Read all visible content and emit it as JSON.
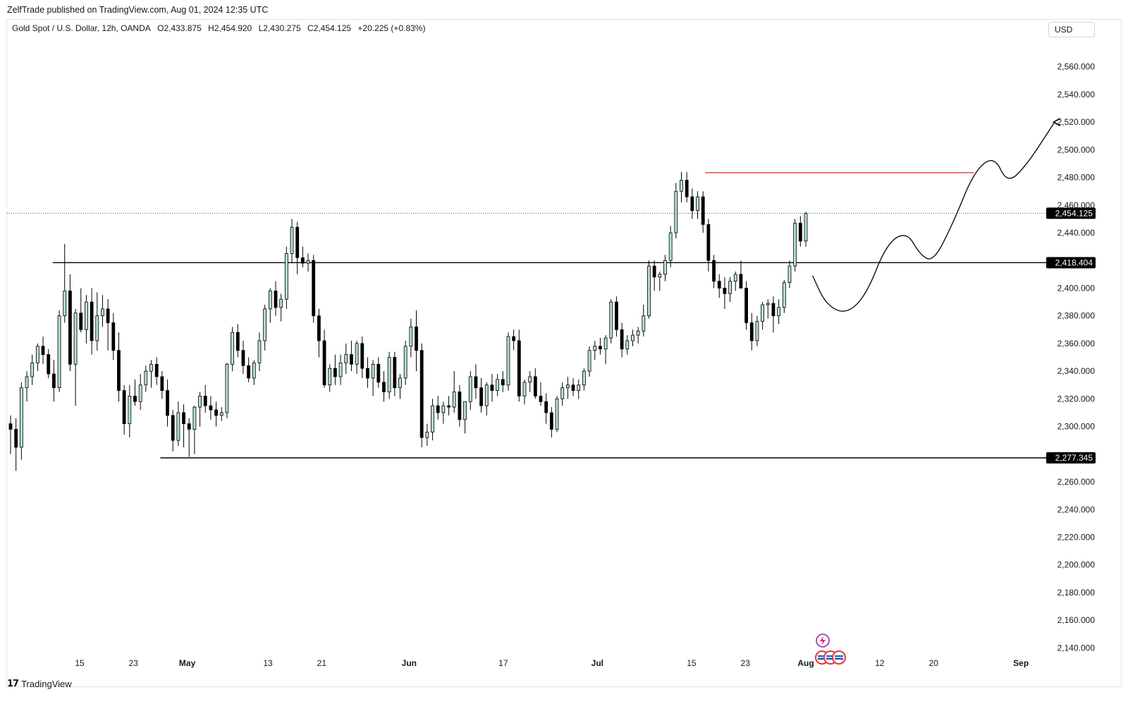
{
  "header": {
    "publisher_line": "ZelfTrade published on TradingView.com, Aug 01, 2024 12:35 UTC"
  },
  "legend": {
    "symbol": "Gold Spot / U.S. Dollar, 12h, OANDA",
    "open": "O2,433.875",
    "high": "H2,454.920",
    "low": "L2,430.275",
    "close": "C2,454.125",
    "change": "+20.225 (+0.83%)"
  },
  "currency_button": "USD",
  "footer": {
    "brand": "TradingView"
  },
  "colors": {
    "up_body": "#b2dfdb",
    "down_body": "#000000",
    "wick": "#000000",
    "resistance_line": "#f23645",
    "level_line": "#000000",
    "label_bg": "#000000",
    "label_text": "#ffffff"
  },
  "icons": [
    "tradingview-logo-icon",
    "lightning-event-icon",
    "us-flag-event-icon"
  ],
  "chart_data": {
    "type": "candlestick",
    "interval": "12h",
    "ylim": [
      2130,
      2570
    ],
    "y_axis_position": "right",
    "y_ticks": [
      "2,560.000",
      "2,540.000",
      "2,520.000",
      "2,500.000",
      "2,480.000",
      "2,460.000",
      "2,440.000",
      "2,400.000",
      "2,380.000",
      "2,360.000",
      "2,340.000",
      "2,320.000",
      "2,300.000",
      "2,260.000",
      "2,240.000",
      "2,220.000",
      "2,200.000",
      "2,180.000",
      "2,160.000",
      "2,140.000"
    ],
    "x_ticks": [
      {
        "label": "15",
        "date": "2024-04-15"
      },
      {
        "label": "23",
        "date": "2024-04-23"
      },
      {
        "label": "May",
        "date": "2024-05-01"
      },
      {
        "label": "13",
        "date": "2024-05-13"
      },
      {
        "label": "21",
        "date": "2024-05-21"
      },
      {
        "label": "Jun",
        "date": "2024-06-03"
      },
      {
        "label": "17",
        "date": "2024-06-17"
      },
      {
        "label": "Jul",
        "date": "2024-07-01"
      },
      {
        "label": "15",
        "date": "2024-07-15"
      },
      {
        "label": "23",
        "date": "2024-07-23"
      },
      {
        "label": "Aug",
        "date": "2024-08-01"
      },
      {
        "label": "12",
        "date": "2024-08-12"
      },
      {
        "label": "20",
        "date": "2024-08-20"
      },
      {
        "label": "Sep",
        "date": "2024-09-02"
      }
    ],
    "price_labels": [
      {
        "label": "2,454.125",
        "value": 2454.125,
        "style": "dotted-current"
      },
      {
        "label": "2,418.404",
        "value": 2418.404,
        "style": "solid-level"
      },
      {
        "label": "2,277.345",
        "value": 2277.345,
        "style": "solid-level"
      }
    ],
    "horizontal_lines": [
      {
        "value": 2418.404,
        "from": "2024-04-11",
        "color": "#000000"
      },
      {
        "value": 2277.345,
        "from": "2024-04-27",
        "color": "#000000"
      },
      {
        "value": 2483.5,
        "from": "2024-07-17",
        "to": "2024-08-26",
        "color": "#f23645"
      }
    ],
    "projection_path": [
      {
        "date": "2024-08-02",
        "value": 2409
      },
      {
        "date": "2024-08-04",
        "value": 2388
      },
      {
        "date": "2024-08-07",
        "value": 2381
      },
      {
        "date": "2024-08-10",
        "value": 2395
      },
      {
        "date": "2024-08-13",
        "value": 2432
      },
      {
        "date": "2024-08-16",
        "value": 2441
      },
      {
        "date": "2024-08-18",
        "value": 2424
      },
      {
        "date": "2024-08-20",
        "value": 2419
      },
      {
        "date": "2024-08-23",
        "value": 2448
      },
      {
        "date": "2024-08-26",
        "value": 2484
      },
      {
        "date": "2024-08-29",
        "value": 2496
      },
      {
        "date": "2024-08-31",
        "value": 2475
      },
      {
        "date": "2024-09-03",
        "value": 2490
      },
      {
        "date": "2024-09-07",
        "value": 2520
      }
    ],
    "candles": [
      {
        "o": 2302,
        "h": 2308,
        "l": 2280,
        "c": 2298
      },
      {
        "o": 2298,
        "h": 2306,
        "l": 2268,
        "c": 2285
      },
      {
        "o": 2285,
        "h": 2332,
        "l": 2276,
        "c": 2328
      },
      {
        "o": 2328,
        "h": 2340,
        "l": 2318,
        "c": 2336
      },
      {
        "o": 2336,
        "h": 2352,
        "l": 2330,
        "c": 2346
      },
      {
        "o": 2346,
        "h": 2360,
        "l": 2340,
        "c": 2358
      },
      {
        "o": 2358,
        "h": 2365,
        "l": 2345,
        "c": 2352
      },
      {
        "o": 2352,
        "h": 2356,
        "l": 2335,
        "c": 2338
      },
      {
        "o": 2338,
        "h": 2348,
        "l": 2318,
        "c": 2328
      },
      {
        "o": 2328,
        "h": 2384,
        "l": 2325,
        "c": 2380
      },
      {
        "o": 2380,
        "h": 2432,
        "l": 2375,
        "c": 2398
      },
      {
        "o": 2398,
        "h": 2410,
        "l": 2340,
        "c": 2345
      },
      {
        "o": 2345,
        "h": 2385,
        "l": 2315,
        "c": 2382
      },
      {
        "o": 2382,
        "h": 2400,
        "l": 2368,
        "c": 2370
      },
      {
        "o": 2370,
        "h": 2395,
        "l": 2360,
        "c": 2390
      },
      {
        "o": 2390,
        "h": 2400,
        "l": 2352,
        "c": 2362
      },
      {
        "o": 2362,
        "h": 2397,
        "l": 2355,
        "c": 2380
      },
      {
        "o": 2380,
        "h": 2395,
        "l": 2372,
        "c": 2385
      },
      {
        "o": 2385,
        "h": 2392,
        "l": 2355,
        "c": 2375
      },
      {
        "o": 2375,
        "h": 2382,
        "l": 2348,
        "c": 2355
      },
      {
        "o": 2355,
        "h": 2368,
        "l": 2318,
        "c": 2326
      },
      {
        "o": 2326,
        "h": 2330,
        "l": 2294,
        "c": 2302
      },
      {
        "o": 2302,
        "h": 2330,
        "l": 2292,
        "c": 2322
      },
      {
        "o": 2322,
        "h": 2334,
        "l": 2315,
        "c": 2318
      },
      {
        "o": 2318,
        "h": 2338,
        "l": 2312,
        "c": 2330
      },
      {
        "o": 2330,
        "h": 2344,
        "l": 2325,
        "c": 2340
      },
      {
        "o": 2340,
        "h": 2348,
        "l": 2328,
        "c": 2345
      },
      {
        "o": 2345,
        "h": 2350,
        "l": 2330,
        "c": 2336
      },
      {
        "o": 2336,
        "h": 2340,
        "l": 2320,
        "c": 2326
      },
      {
        "o": 2326,
        "h": 2334,
        "l": 2300,
        "c": 2308
      },
      {
        "o": 2308,
        "h": 2312,
        "l": 2282,
        "c": 2290
      },
      {
        "o": 2290,
        "h": 2318,
        "l": 2286,
        "c": 2310
      },
      {
        "o": 2310,
        "h": 2316,
        "l": 2285,
        "c": 2302
      },
      {
        "o": 2302,
        "h": 2306,
        "l": 2278,
        "c": 2298
      },
      {
        "o": 2298,
        "h": 2315,
        "l": 2280,
        "c": 2314
      },
      {
        "o": 2314,
        "h": 2325,
        "l": 2300,
        "c": 2322
      },
      {
        "o": 2322,
        "h": 2330,
        "l": 2310,
        "c": 2315
      },
      {
        "o": 2315,
        "h": 2322,
        "l": 2305,
        "c": 2312
      },
      {
        "o": 2312,
        "h": 2318,
        "l": 2300,
        "c": 2308
      },
      {
        "o": 2308,
        "h": 2314,
        "l": 2304,
        "c": 2310
      },
      {
        "o": 2310,
        "h": 2346,
        "l": 2306,
        "c": 2345
      },
      {
        "o": 2345,
        "h": 2372,
        "l": 2340,
        "c": 2368
      },
      {
        "o": 2368,
        "h": 2374,
        "l": 2350,
        "c": 2355
      },
      {
        "o": 2355,
        "h": 2362,
        "l": 2338,
        "c": 2344
      },
      {
        "o": 2344,
        "h": 2350,
        "l": 2332,
        "c": 2335
      },
      {
        "o": 2335,
        "h": 2348,
        "l": 2330,
        "c": 2346
      },
      {
        "o": 2346,
        "h": 2368,
        "l": 2340,
        "c": 2362
      },
      {
        "o": 2362,
        "h": 2388,
        "l": 2355,
        "c": 2385
      },
      {
        "o": 2385,
        "h": 2400,
        "l": 2375,
        "c": 2398
      },
      {
        "o": 2398,
        "h": 2405,
        "l": 2380,
        "c": 2386
      },
      {
        "o": 2386,
        "h": 2396,
        "l": 2376,
        "c": 2392
      },
      {
        "o": 2392,
        "h": 2430,
        "l": 2385,
        "c": 2425
      },
      {
        "o": 2425,
        "h": 2450,
        "l": 2418,
        "c": 2444
      },
      {
        "o": 2444,
        "h": 2448,
        "l": 2410,
        "c": 2422
      },
      {
        "o": 2422,
        "h": 2430,
        "l": 2415,
        "c": 2418
      },
      {
        "o": 2418,
        "h": 2425,
        "l": 2412,
        "c": 2420
      },
      {
        "o": 2420,
        "h": 2424,
        "l": 2375,
        "c": 2380
      },
      {
        "o": 2380,
        "h": 2385,
        "l": 2350,
        "c": 2362
      },
      {
        "o": 2362,
        "h": 2370,
        "l": 2328,
        "c": 2330
      },
      {
        "o": 2330,
        "h": 2345,
        "l": 2325,
        "c": 2342
      },
      {
        "o": 2342,
        "h": 2352,
        "l": 2330,
        "c": 2336
      },
      {
        "o": 2336,
        "h": 2352,
        "l": 2330,
        "c": 2346
      },
      {
        "o": 2346,
        "h": 2360,
        "l": 2338,
        "c": 2352
      },
      {
        "o": 2352,
        "h": 2362,
        "l": 2340,
        "c": 2345
      },
      {
        "o": 2345,
        "h": 2362,
        "l": 2338,
        "c": 2360
      },
      {
        "o": 2360,
        "h": 2365,
        "l": 2335,
        "c": 2342
      },
      {
        "o": 2342,
        "h": 2350,
        "l": 2328,
        "c": 2335
      },
      {
        "o": 2335,
        "h": 2348,
        "l": 2322,
        "c": 2345
      },
      {
        "o": 2345,
        "h": 2350,
        "l": 2328,
        "c": 2332
      },
      {
        "o": 2332,
        "h": 2340,
        "l": 2318,
        "c": 2325
      },
      {
        "o": 2325,
        "h": 2354,
        "l": 2320,
        "c": 2350
      },
      {
        "o": 2350,
        "h": 2354,
        "l": 2322,
        "c": 2328
      },
      {
        "o": 2328,
        "h": 2338,
        "l": 2320,
        "c": 2335
      },
      {
        "o": 2335,
        "h": 2362,
        "l": 2330,
        "c": 2358
      },
      {
        "o": 2358,
        "h": 2378,
        "l": 2350,
        "c": 2372
      },
      {
        "o": 2372,
        "h": 2384,
        "l": 2340,
        "c": 2355
      },
      {
        "o": 2355,
        "h": 2360,
        "l": 2285,
        "c": 2292
      },
      {
        "o": 2292,
        "h": 2302,
        "l": 2286,
        "c": 2296
      },
      {
        "o": 2296,
        "h": 2320,
        "l": 2290,
        "c": 2315
      },
      {
        "o": 2315,
        "h": 2322,
        "l": 2305,
        "c": 2310
      },
      {
        "o": 2310,
        "h": 2318,
        "l": 2302,
        "c": 2315
      },
      {
        "o": 2315,
        "h": 2322,
        "l": 2308,
        "c": 2314
      },
      {
        "o": 2314,
        "h": 2340,
        "l": 2310,
        "c": 2325
      },
      {
        "o": 2325,
        "h": 2330,
        "l": 2300,
        "c": 2305
      },
      {
        "o": 2305,
        "h": 2318,
        "l": 2295,
        "c": 2318
      },
      {
        "o": 2318,
        "h": 2340,
        "l": 2312,
        "c": 2336
      },
      {
        "o": 2336,
        "h": 2345,
        "l": 2320,
        "c": 2328
      },
      {
        "o": 2328,
        "h": 2335,
        "l": 2310,
        "c": 2315
      },
      {
        "o": 2315,
        "h": 2332,
        "l": 2308,
        "c": 2330
      },
      {
        "o": 2330,
        "h": 2338,
        "l": 2318,
        "c": 2326
      },
      {
        "o": 2326,
        "h": 2338,
        "l": 2322,
        "c": 2334
      },
      {
        "o": 2334,
        "h": 2340,
        "l": 2325,
        "c": 2330
      },
      {
        "o": 2330,
        "h": 2368,
        "l": 2326,
        "c": 2365
      },
      {
        "o": 2365,
        "h": 2370,
        "l": 2355,
        "c": 2362
      },
      {
        "o": 2362,
        "h": 2370,
        "l": 2318,
        "c": 2322
      },
      {
        "o": 2322,
        "h": 2334,
        "l": 2316,
        "c": 2332
      },
      {
        "o": 2332,
        "h": 2340,
        "l": 2325,
        "c": 2336
      },
      {
        "o": 2336,
        "h": 2342,
        "l": 2320,
        "c": 2322
      },
      {
        "o": 2322,
        "h": 2332,
        "l": 2315,
        "c": 2318
      },
      {
        "o": 2318,
        "h": 2324,
        "l": 2302,
        "c": 2310
      },
      {
        "o": 2310,
        "h": 2314,
        "l": 2292,
        "c": 2298
      },
      {
        "o": 2298,
        "h": 2322,
        "l": 2296,
        "c": 2320
      },
      {
        "o": 2320,
        "h": 2332,
        "l": 2315,
        "c": 2328
      },
      {
        "o": 2328,
        "h": 2336,
        "l": 2320,
        "c": 2330
      },
      {
        "o": 2330,
        "h": 2335,
        "l": 2322,
        "c": 2326
      },
      {
        "o": 2326,
        "h": 2334,
        "l": 2320,
        "c": 2330
      },
      {
        "o": 2330,
        "h": 2342,
        "l": 2326,
        "c": 2340
      },
      {
        "o": 2340,
        "h": 2358,
        "l": 2336,
        "c": 2355
      },
      {
        "o": 2355,
        "h": 2362,
        "l": 2348,
        "c": 2358
      },
      {
        "o": 2358,
        "h": 2364,
        "l": 2352,
        "c": 2356
      },
      {
        "o": 2356,
        "h": 2366,
        "l": 2345,
        "c": 2364
      },
      {
        "o": 2364,
        "h": 2392,
        "l": 2360,
        "c": 2390
      },
      {
        "o": 2390,
        "h": 2394,
        "l": 2365,
        "c": 2370
      },
      {
        "o": 2370,
        "h": 2375,
        "l": 2350,
        "c": 2356
      },
      {
        "o": 2356,
        "h": 2366,
        "l": 2352,
        "c": 2362
      },
      {
        "o": 2362,
        "h": 2370,
        "l": 2358,
        "c": 2366
      },
      {
        "o": 2366,
        "h": 2372,
        "l": 2360,
        "c": 2369
      },
      {
        "o": 2369,
        "h": 2388,
        "l": 2365,
        "c": 2380
      },
      {
        "o": 2380,
        "h": 2420,
        "l": 2378,
        "c": 2416
      },
      {
        "o": 2416,
        "h": 2420,
        "l": 2398,
        "c": 2408
      },
      {
        "o": 2408,
        "h": 2412,
        "l": 2398,
        "c": 2410
      },
      {
        "o": 2410,
        "h": 2424,
        "l": 2405,
        "c": 2420
      },
      {
        "o": 2420,
        "h": 2445,
        "l": 2415,
        "c": 2440
      },
      {
        "o": 2440,
        "h": 2476,
        "l": 2436,
        "c": 2470
      },
      {
        "o": 2470,
        "h": 2484,
        "l": 2462,
        "c": 2478
      },
      {
        "o": 2478,
        "h": 2484,
        "l": 2462,
        "c": 2466
      },
      {
        "o": 2466,
        "h": 2472,
        "l": 2450,
        "c": 2456
      },
      {
        "o": 2456,
        "h": 2470,
        "l": 2450,
        "c": 2466
      },
      {
        "o": 2466,
        "h": 2470,
        "l": 2440,
        "c": 2446
      },
      {
        "o": 2446,
        "h": 2450,
        "l": 2412,
        "c": 2420
      },
      {
        "o": 2420,
        "h": 2424,
        "l": 2400,
        "c": 2405
      },
      {
        "o": 2405,
        "h": 2410,
        "l": 2393,
        "c": 2400
      },
      {
        "o": 2400,
        "h": 2408,
        "l": 2385,
        "c": 2396
      },
      {
        "o": 2396,
        "h": 2408,
        "l": 2390,
        "c": 2405
      },
      {
        "o": 2405,
        "h": 2412,
        "l": 2398,
        "c": 2410
      },
      {
        "o": 2410,
        "h": 2420,
        "l": 2400,
        "c": 2400
      },
      {
        "o": 2400,
        "h": 2405,
        "l": 2370,
        "c": 2375
      },
      {
        "o": 2375,
        "h": 2382,
        "l": 2355,
        "c": 2362
      },
      {
        "o": 2362,
        "h": 2380,
        "l": 2358,
        "c": 2376
      },
      {
        "o": 2376,
        "h": 2390,
        "l": 2370,
        "c": 2388
      },
      {
        "o": 2388,
        "h": 2392,
        "l": 2378,
        "c": 2389
      },
      {
        "o": 2389,
        "h": 2394,
        "l": 2368,
        "c": 2380
      },
      {
        "o": 2380,
        "h": 2392,
        "l": 2374,
        "c": 2386
      },
      {
        "o": 2386,
        "h": 2406,
        "l": 2382,
        "c": 2404
      },
      {
        "o": 2404,
        "h": 2420,
        "l": 2400,
        "c": 2416
      },
      {
        "o": 2416,
        "h": 2450,
        "l": 2412,
        "c": 2447
      },
      {
        "o": 2447,
        "h": 2452,
        "l": 2430,
        "c": 2434
      },
      {
        "o": 2434,
        "h": 2455,
        "l": 2430,
        "c": 2454
      }
    ]
  }
}
